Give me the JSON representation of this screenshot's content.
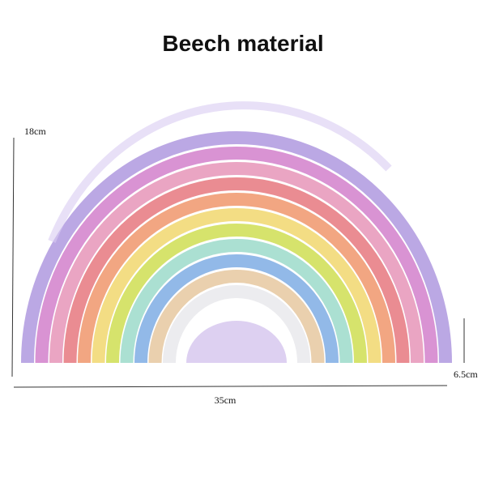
{
  "title": "Beech material",
  "dimensions": {
    "height": "18cm",
    "depth": "6.5cm",
    "width": "35cm"
  }
}
